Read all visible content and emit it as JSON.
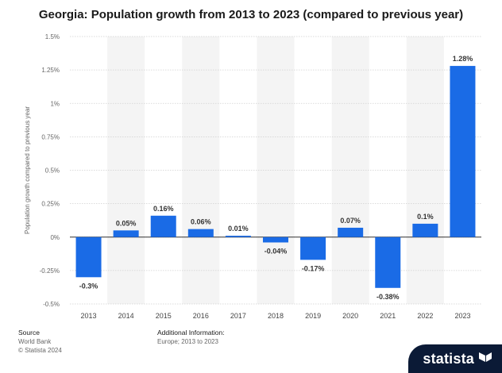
{
  "chart_data": {
    "type": "bar",
    "title": "Georgia: Population growth from 2013 to 2023 (compared to previous year)",
    "ylabel": "Population growth compared to previous year",
    "xlabel": "",
    "categories": [
      "2013",
      "2014",
      "2015",
      "2016",
      "2017",
      "2018",
      "2019",
      "2020",
      "2021",
      "2022",
      "2023"
    ],
    "values": [
      -0.3,
      0.05,
      0.16,
      0.06,
      0.01,
      -0.04,
      -0.17,
      0.07,
      -0.38,
      0.1,
      1.28
    ],
    "value_labels": [
      "-0.3%",
      "0.05%",
      "0.16%",
      "0.06%",
      "0.01%",
      "-0.04%",
      "-0.17%",
      "0.07%",
      "-0.38%",
      "0.1%",
      "1.28%"
    ],
    "ylim": [
      -0.5,
      1.5
    ],
    "yticks": [
      -0.5,
      -0.25,
      0,
      0.25,
      0.5,
      0.75,
      1,
      1.25,
      1.5
    ],
    "ytick_labels": [
      "-0.5%",
      "-0.25%",
      "0%",
      "0.25%",
      "0.5%",
      "0.75%",
      "1%",
      "1.25%",
      "1.5%"
    ],
    "grid": true,
    "bar_color": "#1a6be6"
  },
  "footer": {
    "source_label": "Source",
    "source_lines": [
      "World Bank",
      "© Statista 2024"
    ],
    "additional_label": "Additional Information:",
    "additional_lines": [
      "Europe; 2013 to 2023"
    ]
  },
  "logo": {
    "text": "statista",
    "icon": "statista-flag-icon",
    "color": "#0b1a36"
  }
}
